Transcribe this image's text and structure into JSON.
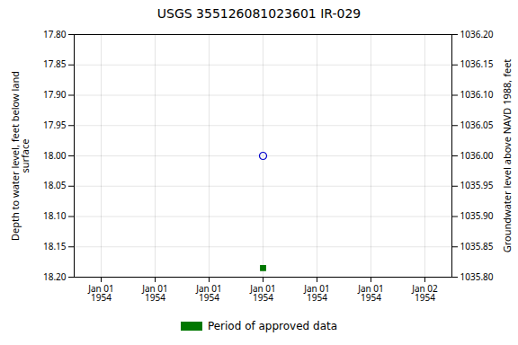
{
  "chart_data": {
    "type": "scatter",
    "title": "USGS 355126081023601 IR-029",
    "ylabel": "Depth to water level, feet below land\nsurface",
    "y2label": "Groundwater level above NAVD 1988, feet",
    "categories": [
      "Jan 01\n1954",
      "Jan 01\n1954",
      "Jan 01\n1954",
      "Jan 01\n1954",
      "Jan 01\n1954",
      "Jan 01\n1954",
      "Jan 02\n1954"
    ],
    "series": [
      {
        "color": "#0000cc",
        "marker": "open_circle",
        "values": [
          null,
          null,
          null,
          18.0,
          null,
          null,
          null
        ]
      },
      {
        "name": "Period of approved data",
        "color": "#007700",
        "marker": "square",
        "values": [
          null,
          null,
          null,
          18.185,
          null,
          null,
          null
        ]
      }
    ],
    "ylim": [
      18.2,
      17.8
    ],
    "yticks": [
      {
        "value": 17.8,
        "label": "17.80"
      },
      {
        "value": 17.85,
        "label": "17.85"
      },
      {
        "value": 17.9,
        "label": "17.90"
      },
      {
        "value": 17.95,
        "label": "17.95"
      },
      {
        "value": 18.0,
        "label": "18.00"
      },
      {
        "value": 18.05,
        "label": "18.05"
      },
      {
        "value": 18.1,
        "label": "18.10"
      },
      {
        "value": 18.15,
        "label": "18.15"
      },
      {
        "value": 18.2,
        "label": "18.20"
      }
    ],
    "y2lim": [
      1035.8,
      1036.2
    ],
    "y2ticks": [
      {
        "value": 1035.8,
        "label": "1035.80"
      },
      {
        "value": 1035.85,
        "label": "1035.85"
      },
      {
        "value": 1035.9,
        "label": "1035.90"
      },
      {
        "value": 1035.95,
        "label": "1035.95"
      },
      {
        "value": 1036.0,
        "label": "1036.00"
      },
      {
        "value": 1036.05,
        "label": "1036.05"
      },
      {
        "value": 1036.1,
        "label": "1036.10"
      },
      {
        "value": 1036.15,
        "label": "1036.15"
      },
      {
        "value": 1036.2,
        "label": "1036.20"
      }
    ],
    "grid": true,
    "legend": "bottom"
  }
}
